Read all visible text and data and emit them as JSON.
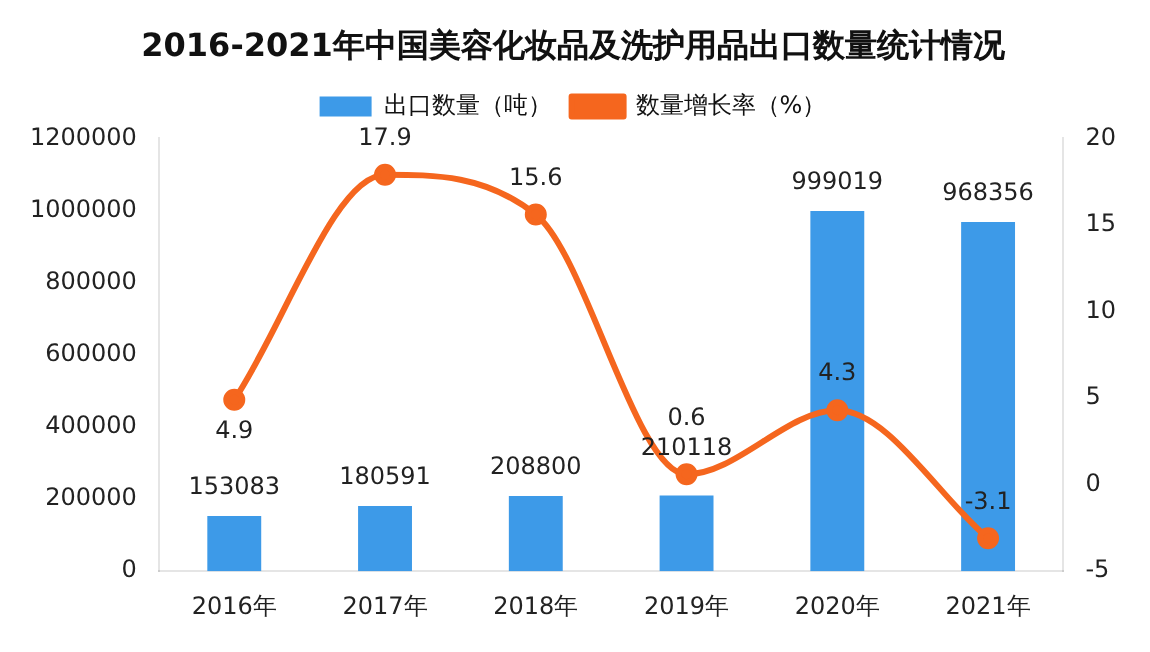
{
  "chart_data": {
    "type": "line",
    "title": "2016-2021年中国美容化妆品及洗护用品出口数量统计情况",
    "categories": [
      "2016年",
      "2017年",
      "2018年",
      "2019年",
      "2020年",
      "2021年"
    ],
    "series": [
      {
        "name": "出口数量（吨）",
        "type": "bar",
        "color": "#3d9ae8",
        "values": [
          153083,
          180591,
          208800,
          210118,
          999019,
          968356
        ]
      },
      {
        "name": "数量增长率（%）",
        "axis": "y2",
        "color": "#f5661e",
        "values": [
          4.9,
          17.9,
          15.6,
          0.6,
          4.3,
          -3.1
        ]
      }
    ],
    "ylim": [
      0,
      1200000
    ],
    "yticks": [
      0,
      200000,
      400000,
      600000,
      800000,
      1000000,
      1200000
    ],
    "y2lim": [
      -5,
      20
    ],
    "y2ticks": [
      -5,
      0,
      5,
      10,
      15,
      20
    ],
    "grid": false,
    "legend": "top",
    "marker": "circle",
    "data_labels": true
  }
}
